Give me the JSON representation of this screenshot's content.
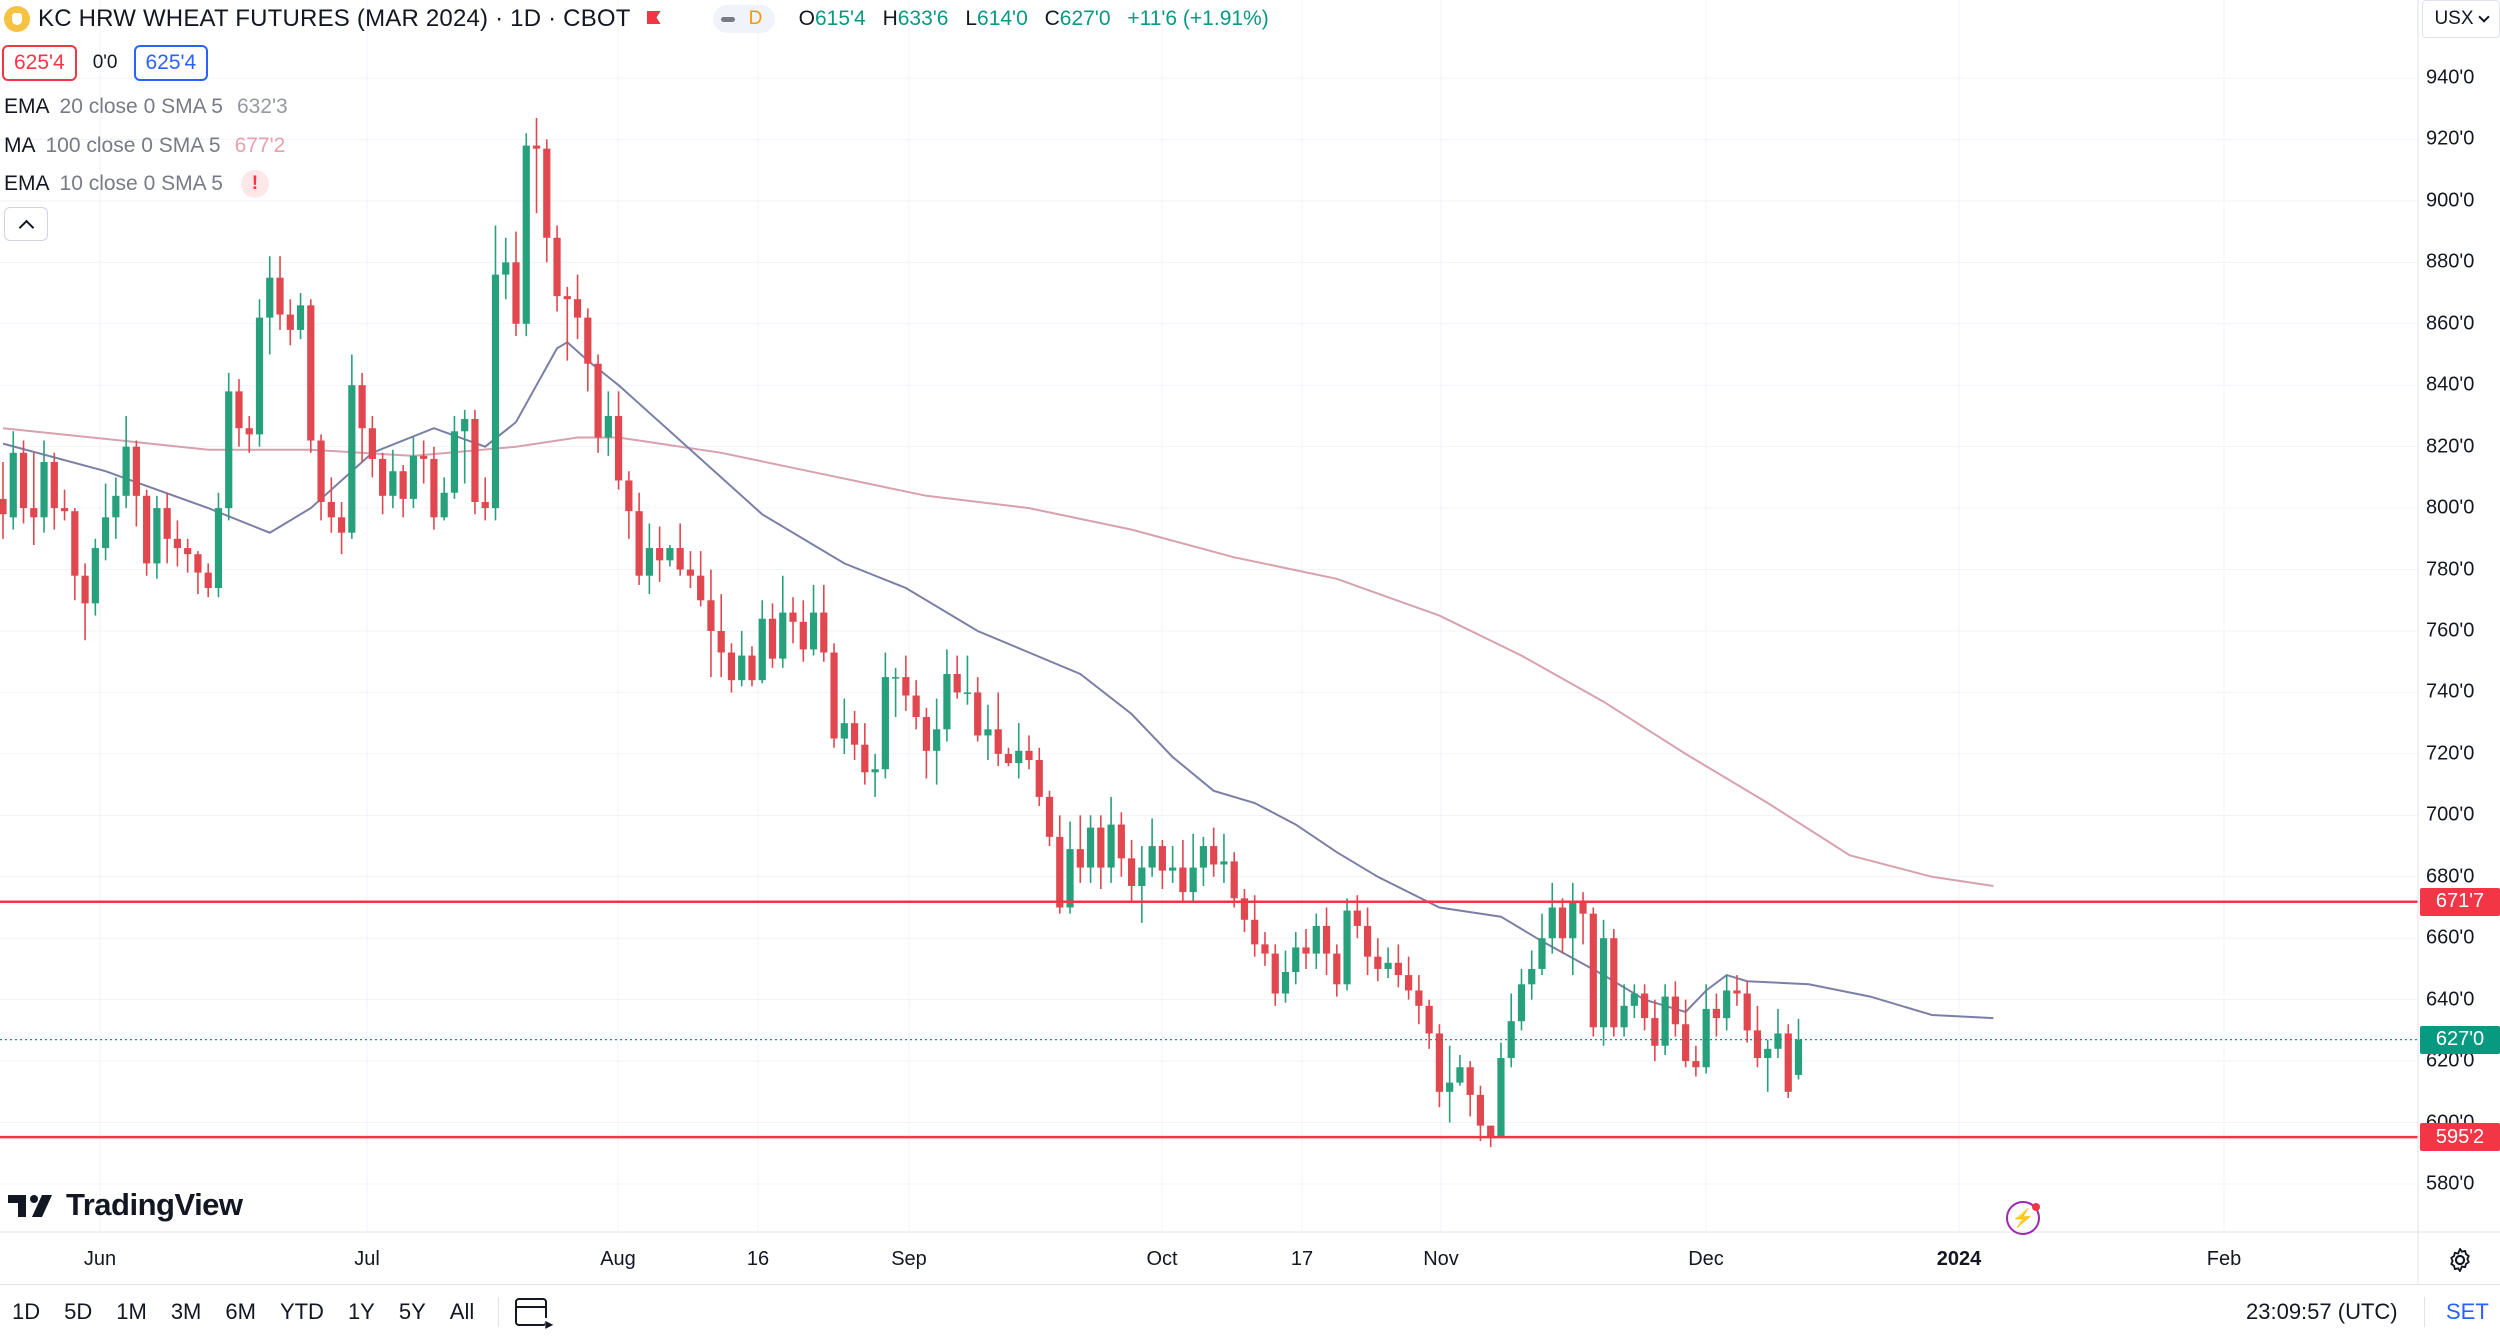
{
  "header": {
    "title": "KC HRW WHEAT FUTURES (MAR 2024) · 1D · CBOT",
    "session_letter": "D",
    "ohlc": [
      {
        "key": "O",
        "value": "615'4"
      },
      {
        "key": "H",
        "value": "633'6"
      },
      {
        "key": "L",
        "value": "614'0"
      },
      {
        "key": "C",
        "value": "627'0"
      },
      {
        "key": "",
        "value": "+11'6 (+1.91%)"
      }
    ]
  },
  "price_boxes": {
    "sell": "625'4",
    "spread": "0'0",
    "buy": "625'4"
  },
  "indicators": [
    {
      "name": "EMA",
      "args": "20 close 0 SMA 5",
      "value": "632'3",
      "color": "#9598a1"
    },
    {
      "name": "MA",
      "args": "100 close 0 SMA 5",
      "value": "677'2",
      "color": "#e8a0ad"
    },
    {
      "name": "EMA",
      "args": "10 close 0 SMA 5",
      "value": "!"
    }
  ],
  "currency": "USX",
  "y_axis_ticks": [
    "940'0",
    "920'0",
    "900'0",
    "880'0",
    "860'0",
    "840'0",
    "820'0",
    "800'0",
    "780'0",
    "760'0",
    "740'0",
    "720'0",
    "700'0",
    "680'0",
    "660'0",
    "640'0",
    "620'0",
    "600'0",
    "580'0"
  ],
  "x_axis_ticks": [
    {
      "label": "Jun",
      "bold": false
    },
    {
      "label": "Jul",
      "bold": false
    },
    {
      "label": "Aug",
      "bold": false
    },
    {
      "label": "16",
      "bold": false
    },
    {
      "label": "Sep",
      "bold": false
    },
    {
      "label": "Oct",
      "bold": false
    },
    {
      "label": "17",
      "bold": false
    },
    {
      "label": "Nov",
      "bold": false
    },
    {
      "label": "Dec",
      "bold": false
    },
    {
      "label": "2024",
      "bold": true
    },
    {
      "label": "Feb",
      "bold": false
    }
  ],
  "horizontal_levels": [
    {
      "label": "671'7",
      "price": 671.875,
      "color": "#f23645"
    },
    {
      "label": "595'2",
      "price": 595.25,
      "color": "#f23645"
    }
  ],
  "last_price": {
    "label": "627'0",
    "price": 627.0,
    "color": "#089981"
  },
  "logo": {
    "text": "TradingView"
  },
  "bottom_bar": {
    "periods": [
      "1D",
      "5D",
      "1M",
      "3M",
      "6M",
      "YTD",
      "1Y",
      "5Y",
      "All"
    ],
    "clock": "23:09:57 (UTC)",
    "session": "SET"
  },
  "colors": {
    "up": "#26a17b",
    "down": "#e0474f",
    "ema20": "#7b7fa6",
    "ma100": "#d7a1ae",
    "level": "#f23645"
  },
  "chart_data": {
    "type": "candlestick",
    "symbol": "KC HRW WHEAT FUTURES (MAR 2024)",
    "interval": "1D",
    "ylim": [
      565,
      950
    ],
    "candles": [
      [
        803,
        798,
        815,
        790
      ],
      [
        797,
        818,
        825,
        793
      ],
      [
        818,
        800,
        822,
        795
      ],
      [
        800,
        797,
        818,
        788
      ],
      [
        797,
        815,
        822,
        792
      ],
      [
        815,
        800,
        818,
        793
      ],
      [
        800,
        799,
        806,
        796
      ],
      [
        799,
        778,
        800,
        770
      ],
      [
        778,
        769,
        782,
        757
      ],
      [
        769,
        787,
        790,
        765
      ],
      [
        787,
        797,
        808,
        783
      ],
      [
        797,
        804,
        810,
        790
      ],
      [
        804,
        820,
        830,
        800
      ],
      [
        820,
        804,
        822,
        794
      ],
      [
        804,
        782,
        806,
        778
      ],
      [
        782,
        800,
        804,
        777
      ],
      [
        800,
        790,
        805,
        782
      ],
      [
        790,
        787,
        796,
        781
      ],
      [
        787,
        785,
        790,
        779
      ],
      [
        785,
        779,
        786,
        772
      ],
      [
        779,
        774,
        782,
        771
      ],
      [
        774,
        800,
        805,
        771
      ],
      [
        800,
        838,
        844,
        796
      ],
      [
        838,
        826,
        842,
        820
      ],
      [
        826,
        824,
        830,
        818
      ],
      [
        824,
        862,
        868,
        820
      ],
      [
        862,
        875,
        882,
        850
      ],
      [
        875,
        863,
        882,
        858
      ],
      [
        863,
        858,
        868,
        853
      ],
      [
        858,
        866,
        870,
        855
      ],
      [
        866,
        822,
        868,
        818
      ],
      [
        822,
        802,
        824,
        796
      ],
      [
        802,
        797,
        810,
        792
      ],
      [
        797,
        792,
        802,
        785
      ],
      [
        792,
        840,
        850,
        790
      ],
      [
        840,
        826,
        844,
        815
      ],
      [
        826,
        816,
        830,
        810
      ],
      [
        816,
        804,
        818,
        798
      ],
      [
        804,
        812,
        819,
        800
      ],
      [
        812,
        803,
        814,
        797
      ],
      [
        803,
        817,
        823,
        800
      ],
      [
        817,
        816,
        822,
        808
      ],
      [
        816,
        797,
        820,
        793
      ],
      [
        797,
        805,
        810,
        796
      ],
      [
        805,
        825,
        830,
        803
      ],
      [
        825,
        829,
        832,
        808
      ],
      [
        829,
        802,
        832,
        798
      ],
      [
        802,
        800,
        810,
        796
      ],
      [
        800,
        876,
        892,
        796
      ],
      [
        876,
        880,
        888,
        868
      ],
      [
        880,
        860,
        890,
        856
      ],
      [
        860,
        918,
        922,
        856
      ],
      [
        918,
        917,
        927,
        896
      ],
      [
        917,
        888,
        920,
        880
      ],
      [
        888,
        869,
        892,
        864
      ],
      [
        869,
        868,
        872,
        848
      ],
      [
        868,
        862,
        876,
        855
      ],
      [
        862,
        847,
        865,
        838
      ],
      [
        847,
        823,
        850,
        818
      ],
      [
        823,
        830,
        838,
        817
      ],
      [
        830,
        809,
        838,
        806
      ],
      [
        809,
        799,
        812,
        790
      ],
      [
        799,
        778,
        805,
        775
      ],
      [
        778,
        787,
        795,
        772
      ],
      [
        787,
        783,
        794,
        776
      ],
      [
        783,
        787,
        788,
        781
      ],
      [
        787,
        780,
        795,
        778
      ],
      [
        780,
        778,
        786,
        774
      ],
      [
        778,
        770,
        786,
        768
      ],
      [
        770,
        760,
        780,
        745
      ],
      [
        760,
        753,
        772,
        745
      ],
      [
        753,
        744,
        756,
        740
      ],
      [
        744,
        752,
        760,
        742
      ],
      [
        752,
        744,
        755,
        742
      ],
      [
        744,
        764,
        770,
        743
      ],
      [
        764,
        751,
        769,
        748
      ],
      [
        751,
        766,
        778,
        748
      ],
      [
        766,
        763,
        771,
        756
      ],
      [
        763,
        754,
        770,
        750
      ],
      [
        754,
        766,
        775,
        752
      ],
      [
        766,
        753,
        775,
        750
      ],
      [
        753,
        725,
        756,
        722
      ],
      [
        725,
        730,
        738,
        720
      ],
      [
        730,
        723,
        734,
        718
      ],
      [
        723,
        714,
        730,
        710
      ],
      [
        714,
        715,
        720,
        706
      ],
      [
        715,
        745,
        753,
        712
      ],
      [
        745,
        745,
        748,
        732
      ],
      [
        745,
        739,
        752,
        734
      ],
      [
        739,
        732,
        744,
        728
      ],
      [
        732,
        721,
        735,
        712
      ],
      [
        721,
        728,
        738,
        710
      ],
      [
        728,
        746,
        754,
        724
      ],
      [
        746,
        740,
        752,
        738
      ],
      [
        740,
        740,
        752,
        736
      ],
      [
        740,
        726,
        745,
        724
      ],
      [
        726,
        728,
        736,
        718
      ],
      [
        728,
        720,
        740,
        716
      ],
      [
        720,
        717,
        722,
        716
      ],
      [
        717,
        721,
        730,
        712
      ],
      [
        721,
        718,
        726,
        715
      ],
      [
        718,
        706,
        722,
        703
      ],
      [
        706,
        693,
        708,
        690
      ],
      [
        693,
        670,
        700,
        668
      ],
      [
        670,
        689,
        698,
        668
      ],
      [
        689,
        683,
        700,
        678
      ],
      [
        683,
        696,
        700,
        678
      ],
      [
        696,
        683,
        700,
        676
      ],
      [
        683,
        697,
        706,
        678
      ],
      [
        697,
        686,
        701,
        680
      ],
      [
        686,
        677,
        692,
        672
      ],
      [
        677,
        683,
        690,
        665
      ],
      [
        683,
        690,
        699,
        680
      ],
      [
        690,
        682,
        692,
        676
      ],
      [
        682,
        683,
        690,
        678
      ],
      [
        683,
        675,
        692,
        672
      ],
      [
        675,
        683,
        694,
        672
      ],
      [
        683,
        690,
        693,
        677
      ],
      [
        690,
        684,
        696,
        680
      ],
      [
        684,
        685,
        694,
        678
      ],
      [
        685,
        673,
        688,
        670
      ],
      [
        673,
        666,
        676,
        662
      ],
      [
        666,
        658,
        674,
        654
      ],
      [
        658,
        655,
        662,
        651
      ],
      [
        655,
        642,
        658,
        638
      ],
      [
        642,
        649,
        656,
        639
      ],
      [
        649,
        657,
        662,
        645
      ],
      [
        657,
        655,
        663,
        650
      ],
      [
        655,
        664,
        668,
        650
      ],
      [
        664,
        655,
        670,
        648
      ],
      [
        655,
        645,
        658,
        641
      ],
      [
        645,
        669,
        673,
        643
      ],
      [
        669,
        664,
        674,
        660
      ],
      [
        664,
        654,
        670,
        648
      ],
      [
        654,
        650,
        660,
        646
      ],
      [
        650,
        652,
        657,
        647
      ],
      [
        652,
        648,
        658,
        644
      ],
      [
        648,
        643,
        654,
        640
      ],
      [
        643,
        638,
        648,
        632
      ],
      [
        638,
        629,
        640,
        624
      ],
      [
        629,
        610,
        632,
        605
      ],
      [
        610,
        613,
        625,
        600
      ],
      [
        613,
        618,
        622,
        612
      ],
      [
        618,
        609,
        620,
        602
      ],
      [
        609,
        599,
        612,
        594
      ],
      [
        599,
        595,
        597,
        592
      ],
      [
        595,
        621,
        626,
        595
      ],
      [
        621,
        633,
        642,
        618
      ],
      [
        633,
        645,
        650,
        630
      ],
      [
        645,
        650,
        656,
        640
      ],
      [
        650,
        660,
        668,
        648
      ],
      [
        660,
        670,
        678,
        655
      ],
      [
        670,
        660,
        673,
        655
      ],
      [
        660,
        672,
        678,
        648
      ],
      [
        672,
        668,
        675,
        658
      ],
      [
        668,
        631,
        670,
        628
      ],
      [
        631,
        660,
        666,
        625
      ],
      [
        660,
        631,
        663,
        628
      ],
      [
        631,
        638,
        645,
        628
      ],
      [
        638,
        642,
        645,
        634
      ],
      [
        642,
        634,
        645,
        630
      ],
      [
        634,
        625,
        640,
        620
      ],
      [
        625,
        641,
        645,
        622
      ],
      [
        641,
        632,
        646,
        628
      ],
      [
        632,
        620,
        640,
        618
      ],
      [
        620,
        618,
        625,
        615
      ],
      [
        618,
        637,
        645,
        616
      ],
      [
        637,
        634,
        642,
        628
      ],
      [
        634,
        643,
        648,
        630
      ],
      [
        643,
        642,
        648,
        638
      ],
      [
        642,
        630,
        646,
        626
      ],
      [
        630,
        621,
        638,
        618
      ],
      [
        621,
        624,
        627,
        610
      ],
      [
        624,
        629,
        637,
        621
      ],
      [
        629,
        610,
        632,
        608
      ],
      [
        615.5,
        627,
        633.75,
        614
      ]
    ],
    "ema20": [
      [
        0,
        821
      ],
      [
        10,
        812
      ],
      [
        20,
        800
      ],
      [
        26,
        792
      ],
      [
        30,
        800
      ],
      [
        36,
        818
      ],
      [
        42,
        826
      ],
      [
        47,
        820
      ],
      [
        50,
        828
      ],
      [
        52,
        840
      ],
      [
        54,
        852
      ],
      [
        55,
        854
      ],
      [
        57,
        848
      ],
      [
        60,
        840
      ],
      [
        66,
        822
      ],
      [
        74,
        798
      ],
      [
        82,
        782
      ],
      [
        88,
        774
      ],
      [
        95,
        760
      ],
      [
        100,
        753
      ],
      [
        105,
        746
      ],
      [
        110,
        733
      ],
      [
        114,
        719
      ],
      [
        118,
        708
      ],
      [
        122,
        704
      ],
      [
        126,
        697
      ],
      [
        130,
        688
      ],
      [
        134,
        680
      ],
      [
        140,
        670
      ],
      [
        146,
        667
      ],
      [
        150,
        659
      ],
      [
        156,
        648
      ],
      [
        160,
        640
      ],
      [
        164,
        636
      ],
      [
        166,
        643
      ],
      [
        168,
        648
      ],
      [
        170,
        646
      ],
      [
        176,
        645
      ],
      [
        182,
        641
      ],
      [
        188,
        635
      ],
      [
        194,
        634
      ]
    ],
    "ma100": [
      [
        0,
        826
      ],
      [
        20,
        819
      ],
      [
        30,
        819
      ],
      [
        40,
        817
      ],
      [
        50,
        820
      ],
      [
        56,
        823
      ],
      [
        60,
        823
      ],
      [
        70,
        818
      ],
      [
        80,
        811
      ],
      [
        90,
        804
      ],
      [
        100,
        800
      ],
      [
        110,
        793
      ],
      [
        120,
        784
      ],
      [
        130,
        777
      ],
      [
        140,
        765
      ],
      [
        148,
        752
      ],
      [
        156,
        737
      ],
      [
        164,
        720
      ],
      [
        172,
        704
      ],
      [
        180,
        687
      ],
      [
        188,
        680
      ],
      [
        194,
        677
      ]
    ]
  }
}
